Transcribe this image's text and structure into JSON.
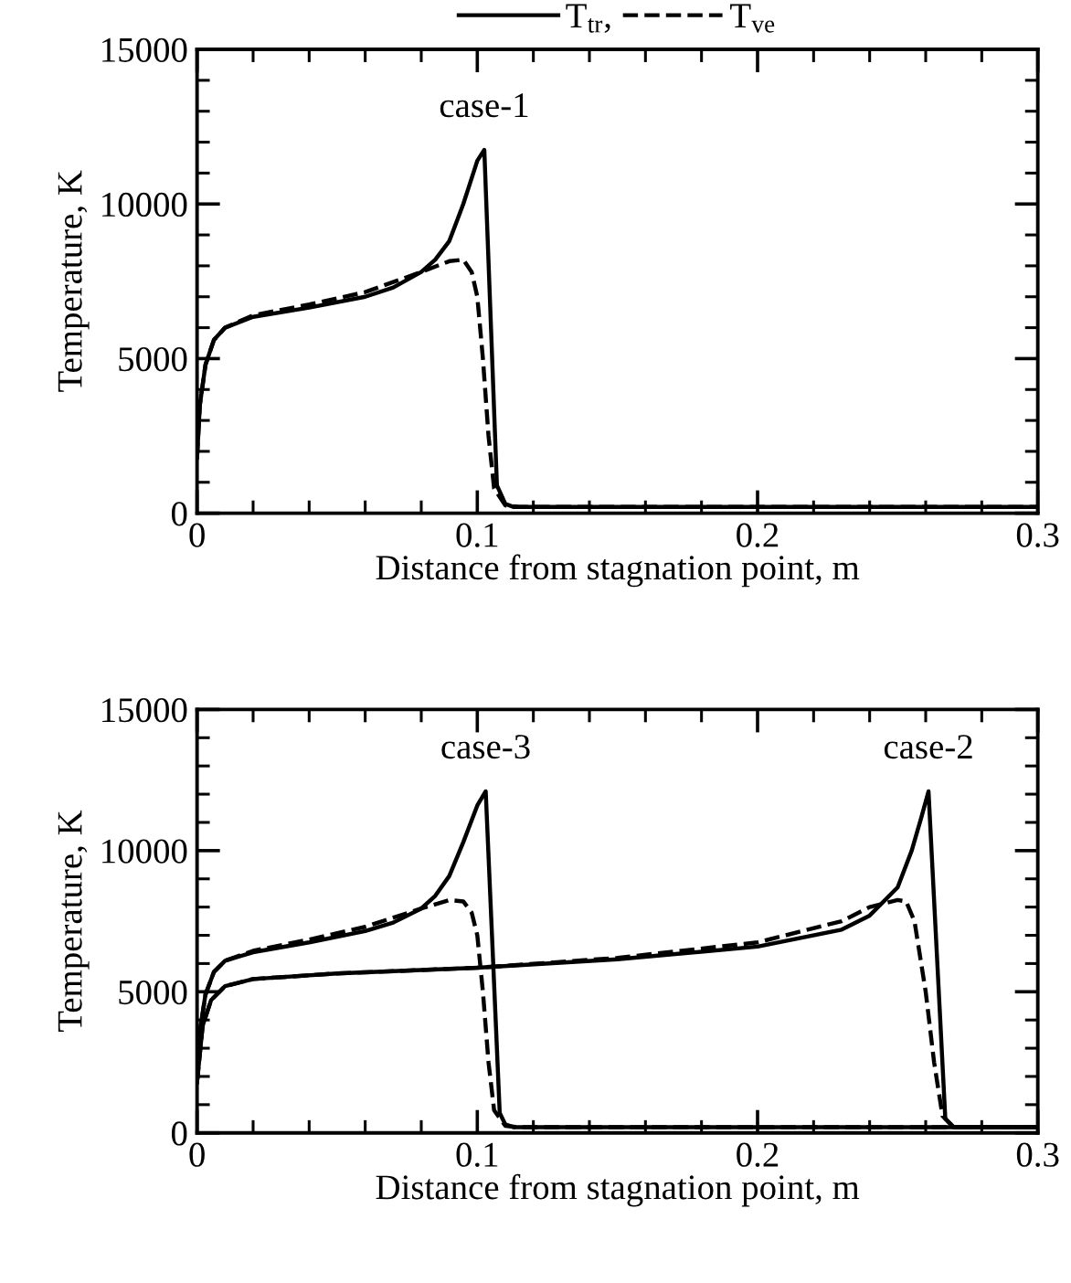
{
  "chart_data": [
    {
      "type": "line",
      "xlabel": "Distance from stagnation point, m",
      "ylabel": "Temperature, K",
      "xlim": [
        0,
        0.3
      ],
      "ylim": [
        0,
        15000
      ],
      "xticks": [
        0,
        0.1,
        0.2,
        0.3
      ],
      "yticks": [
        0,
        5000,
        10000,
        15000
      ],
      "grid": false,
      "legend": "top",
      "marker": "none",
      "annotations": [
        "case-1"
      ],
      "series": [
        {
          "name": "T$_{tr}$,",
          "color": "#000000",
          "line_style": "solid",
          "x": [
            0,
            0.001,
            0.003,
            0.006,
            0.01,
            0.02,
            0.04,
            0.06,
            0.07,
            0.08,
            0.085,
            0.09,
            0.095,
            0.1,
            0.1025,
            0.107,
            0.11,
            0.113,
            0.3
          ],
          "values": [
            1800,
            3500,
            4800,
            5600,
            6000,
            6350,
            6650,
            7000,
            7300,
            7800,
            8200,
            8800,
            10000,
            11400,
            11750,
            900,
            300,
            200,
            200
          ]
        },
        {
          "name": "T$_{ve}$",
          "color": "#000000",
          "line_style": "dashed",
          "x": [
            0,
            0.001,
            0.003,
            0.006,
            0.01,
            0.02,
            0.04,
            0.06,
            0.08,
            0.09,
            0.095,
            0.098,
            0.1,
            0.102,
            0.104,
            0.106,
            0.11,
            0.115,
            0.3
          ],
          "values": [
            1800,
            3500,
            4800,
            5600,
            6000,
            6400,
            6750,
            7150,
            7800,
            8150,
            8200,
            7800,
            7000,
            5000,
            2500,
            800,
            250,
            200,
            200
          ]
        }
      ]
    },
    {
      "type": "line",
      "xlabel": "Distance from stagnation point, m",
      "ylabel": "Temperature, K",
      "xlim": [
        0,
        0.3
      ],
      "ylim": [
        0,
        15000
      ],
      "xticks": [
        0,
        0.1,
        0.2,
        0.3
      ],
      "yticks": [
        0,
        5000,
        10000,
        15000
      ],
      "grid": false,
      "marker": "none",
      "annotations": [
        "case-3",
        "case-2"
      ],
      "series": [
        {
          "color": "#000000",
          "line_style": "solid",
          "x": [
            0,
            0.001,
            0.003,
            0.006,
            0.01,
            0.02,
            0.04,
            0.06,
            0.07,
            0.08,
            0.085,
            0.09,
            0.095,
            0.1,
            0.103,
            0.108,
            0.11,
            0.113,
            0.3
          ],
          "values": [
            1800,
            3600,
            4900,
            5700,
            6100,
            6400,
            6750,
            7150,
            7450,
            7950,
            8400,
            9100,
            10300,
            11600,
            12100,
            700,
            300,
            200,
            200
          ]
        },
        {
          "color": "#000000",
          "line_style": "dashed",
          "x": [
            0,
            0.001,
            0.003,
            0.006,
            0.01,
            0.02,
            0.04,
            0.06,
            0.08,
            0.09,
            0.095,
            0.098,
            0.1,
            0.102,
            0.104,
            0.106,
            0.11,
            0.115,
            0.3
          ],
          "values": [
            1800,
            3600,
            4900,
            5700,
            6100,
            6450,
            6850,
            7300,
            7950,
            8250,
            8200,
            7800,
            7000,
            5000,
            2500,
            800,
            250,
            200,
            200
          ]
        },
        {
          "color": "#000000",
          "line_style": "solid",
          "x": [
            0,
            0.002,
            0.005,
            0.01,
            0.02,
            0.05,
            0.1,
            0.15,
            0.2,
            0.23,
            0.24,
            0.25,
            0.255,
            0.2585,
            0.261,
            0.267,
            0.27,
            0.3
          ],
          "values": [
            1800,
            3800,
            4700,
            5200,
            5450,
            5650,
            5850,
            6150,
            6600,
            7200,
            7700,
            8700,
            10000,
            11200,
            12100,
            500,
            200,
            200
          ]
        },
        {
          "color": "#000000",
          "line_style": "dashed",
          "x": [
            0,
            0.002,
            0.005,
            0.01,
            0.02,
            0.05,
            0.1,
            0.15,
            0.2,
            0.23,
            0.24,
            0.25,
            0.253,
            0.256,
            0.26,
            0.263,
            0.266,
            0.27,
            0.3
          ],
          "values": [
            1800,
            3800,
            4700,
            5200,
            5450,
            5650,
            5850,
            6200,
            6750,
            7500,
            8000,
            8250,
            8200,
            7500,
            5000,
            2500,
            600,
            200,
            200
          ]
        }
      ]
    }
  ]
}
